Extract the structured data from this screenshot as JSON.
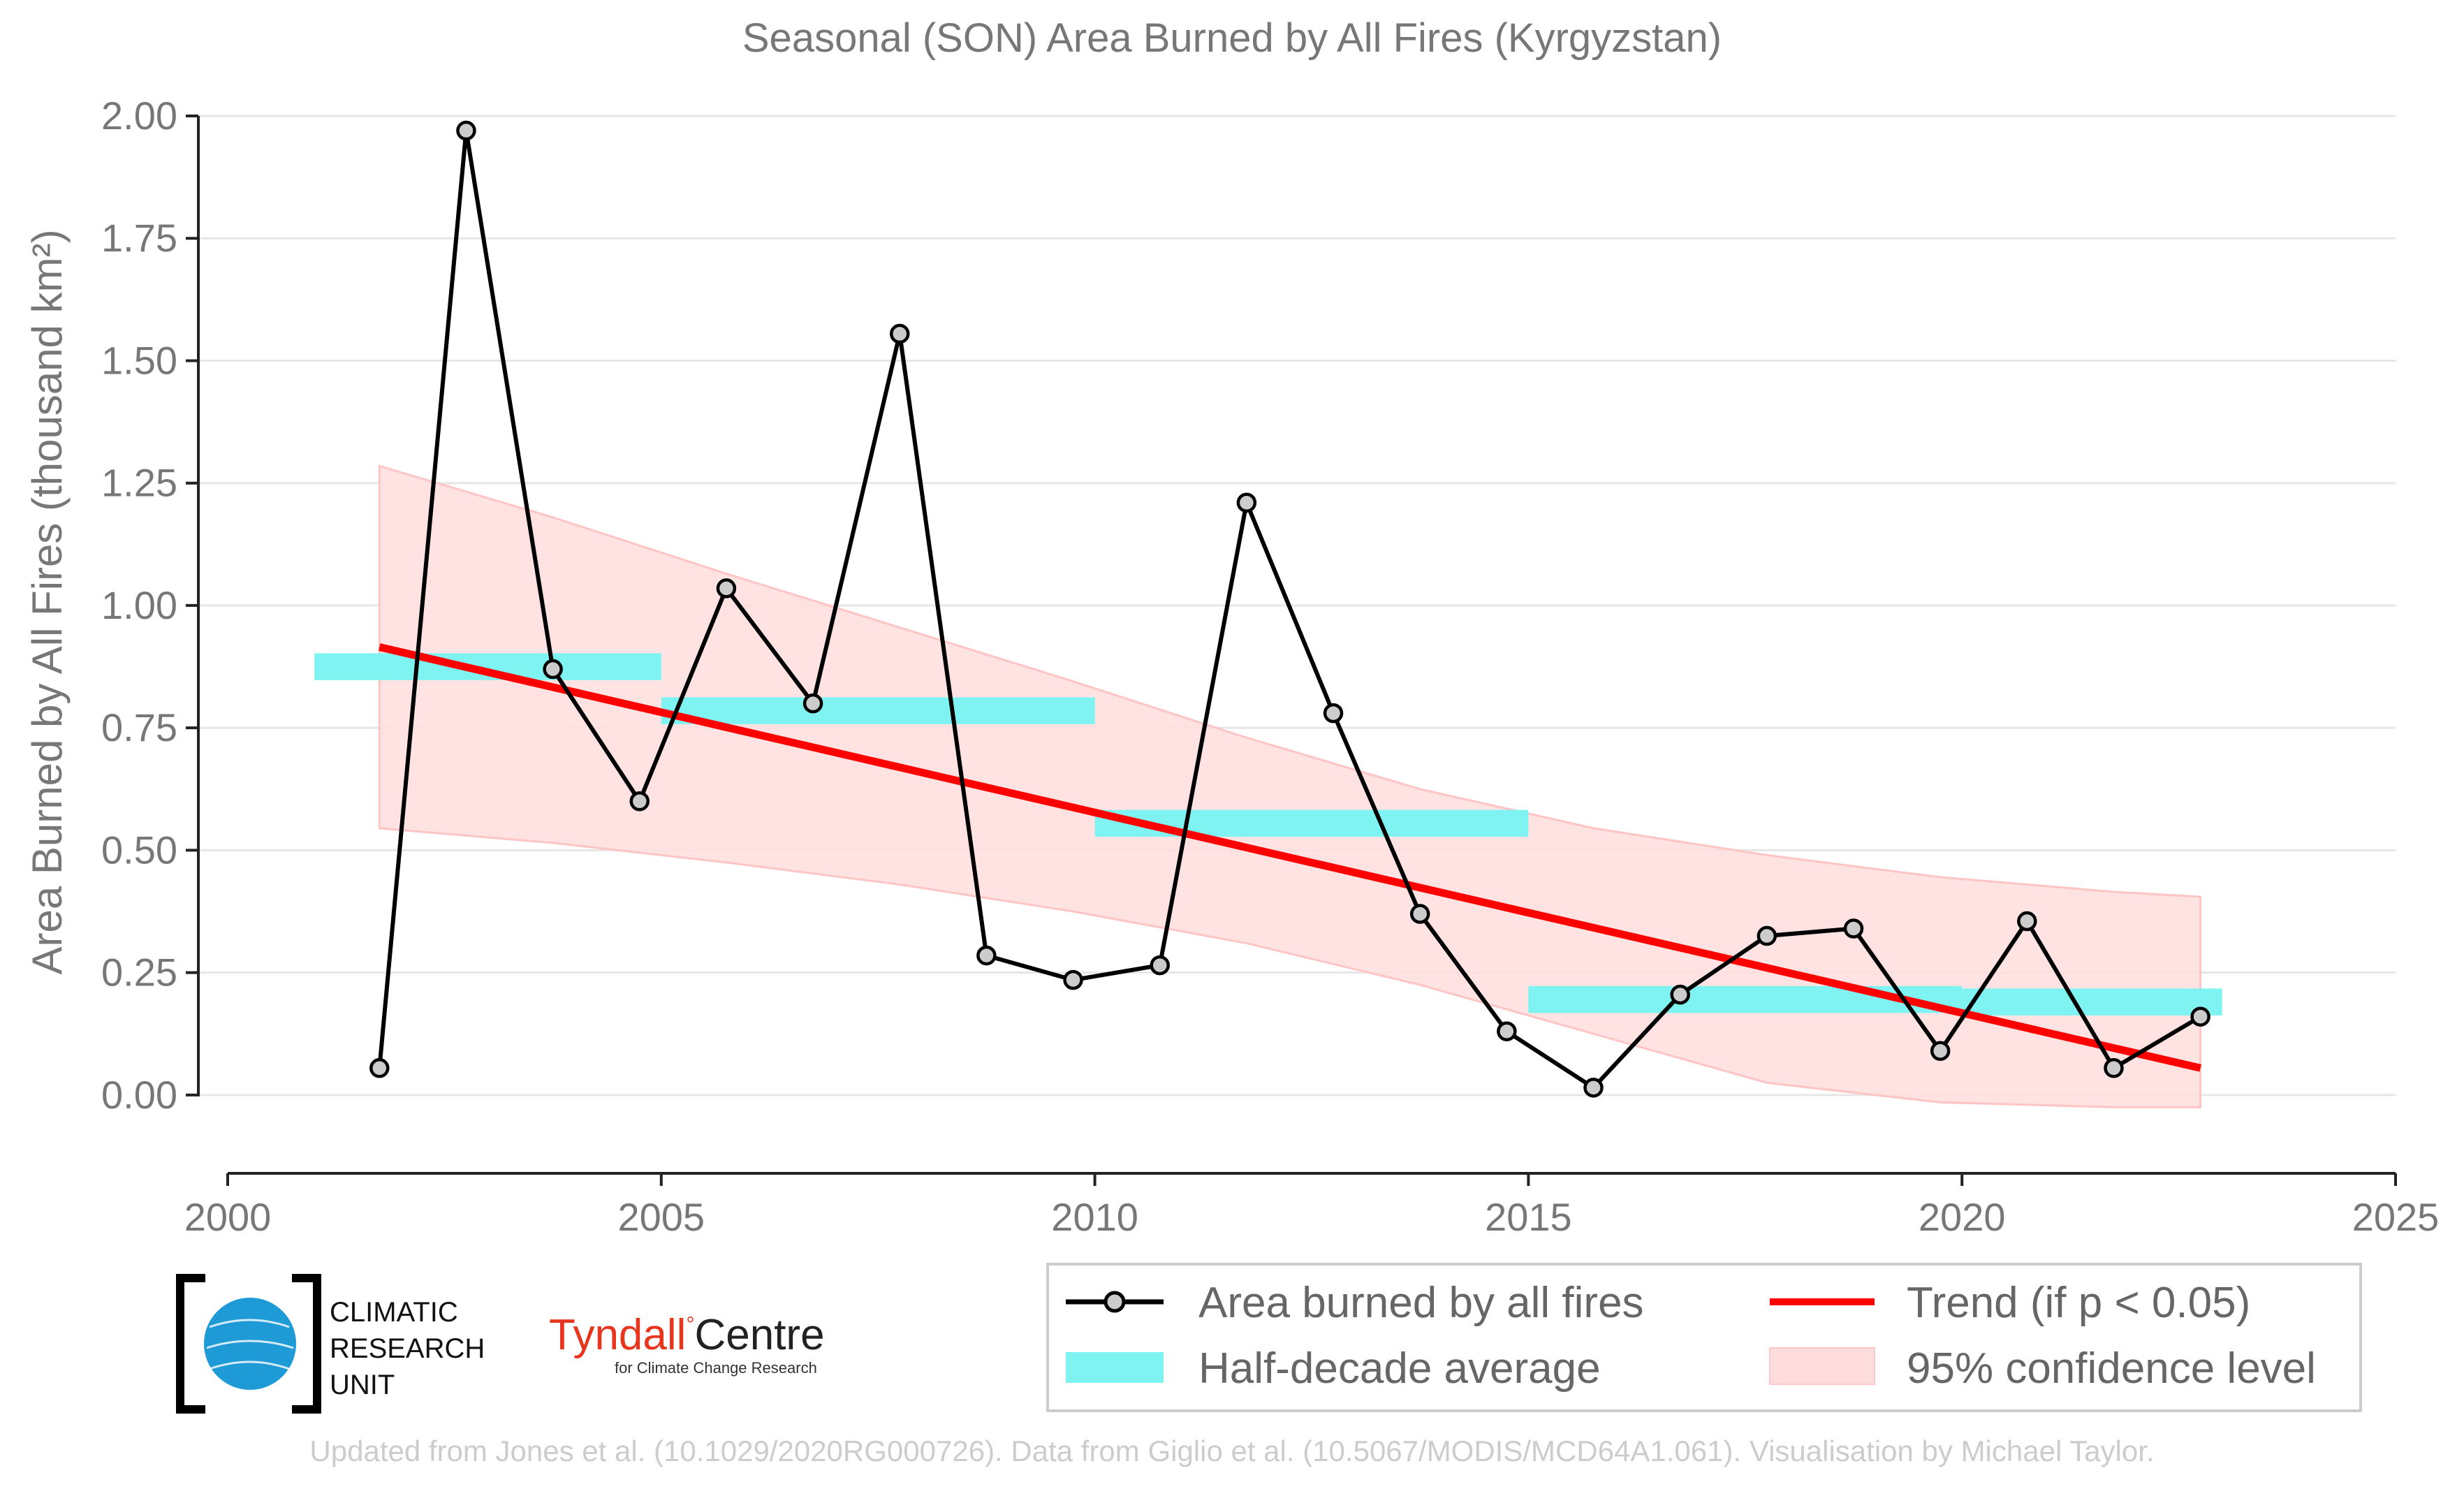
{
  "chart_data": {
    "type": "line",
    "title": "Seasonal (SON) Area Burned by All Fires (Kyrgyzstan)",
    "ylabel": "Area Burned by All Fires (thousand km²)",
    "xlabel": "",
    "xlim": [
      2000,
      2025
    ],
    "ylim": [
      -0.16,
      2.02
    ],
    "x_ticks": [
      "2000",
      "2005",
      "2010",
      "2015",
      "2020",
      "2025"
    ],
    "y_ticks": [
      "0.00",
      "0.25",
      "0.50",
      "0.75",
      "1.00",
      "1.25",
      "1.50",
      "1.75",
      "2.00"
    ],
    "grid": "horizontal",
    "legend_position": "bottom-right",
    "series": [
      {
        "name": "Area burned by all fires",
        "color": "#000000",
        "x": [
          2001.75,
          2002.75,
          2003.75,
          2004.75,
          2005.75,
          2006.75,
          2007.75,
          2008.75,
          2009.75,
          2010.75,
          2011.75,
          2012.75,
          2013.75,
          2014.75,
          2015.75,
          2016.75,
          2017.75,
          2018.75,
          2019.75,
          2020.75,
          2021.75,
          2022.75
        ],
        "values": [
          0.055,
          1.97,
          0.87,
          0.6,
          1.035,
          0.8,
          1.555,
          0.285,
          0.235,
          0.265,
          1.21,
          0.78,
          0.37,
          0.13,
          0.015,
          0.205,
          0.325,
          0.34,
          0.09,
          0.355,
          0.055,
          0.16
        ]
      },
      {
        "name": "Half-decade average",
        "color": "#7ff3f1",
        "segments": [
          {
            "x0": 2001.0,
            "x1": 2005.0,
            "y": 0.875
          },
          {
            "x0": 2005.0,
            "x1": 2010.0,
            "y": 0.785
          },
          {
            "x0": 2010.0,
            "x1": 2015.0,
            "y": 0.555
          },
          {
            "x0": 2015.0,
            "x1": 2020.0,
            "y": 0.195
          },
          {
            "x0": 2020.0,
            "x1": 2023.0,
            "y": 0.19
          }
        ]
      },
      {
        "name": "Trend (if p < 0.05)",
        "color": "#ff0000",
        "x": [
          2001.75,
          2022.75
        ],
        "values": [
          0.915,
          0.055
        ]
      },
      {
        "name": "95% confidence level",
        "color": "#ffdddd",
        "x": [
          2001.75,
          2003.75,
          2005.75,
          2007.75,
          2009.75,
          2011.75,
          2013.75,
          2015.75,
          2017.75,
          2019.75,
          2021.75,
          2022.75
        ],
        "upper": [
          1.285,
          1.18,
          1.065,
          0.955,
          0.845,
          0.73,
          0.625,
          0.545,
          0.49,
          0.445,
          0.415,
          0.405
        ],
        "lower": [
          0.545,
          0.515,
          0.475,
          0.43,
          0.375,
          0.31,
          0.225,
          0.125,
          0.025,
          -0.015,
          -0.025,
          -0.025
        ]
      }
    ]
  },
  "legend": {
    "items": [
      {
        "label": "Area burned by all fires"
      },
      {
        "label": "Trend (if p < 0.05)"
      },
      {
        "label": "Half-decade average"
      },
      {
        "label": "95% confidence level"
      }
    ]
  },
  "logos": {
    "cru": {
      "line1": "CLIMATIC",
      "line2": "RESEARCH",
      "line3": "UNIT"
    },
    "tyndall": {
      "name": "Tyndall",
      "centre": "Centre",
      "sub": "for Climate Change Research",
      "color": "#e8351e"
    }
  },
  "credit": "Updated from Jones et al. (10.1029/2020RG000726). Data from Giglio et al. (10.5067/MODIS/MCD64A1.061). Visualisation by Michael Taylor."
}
